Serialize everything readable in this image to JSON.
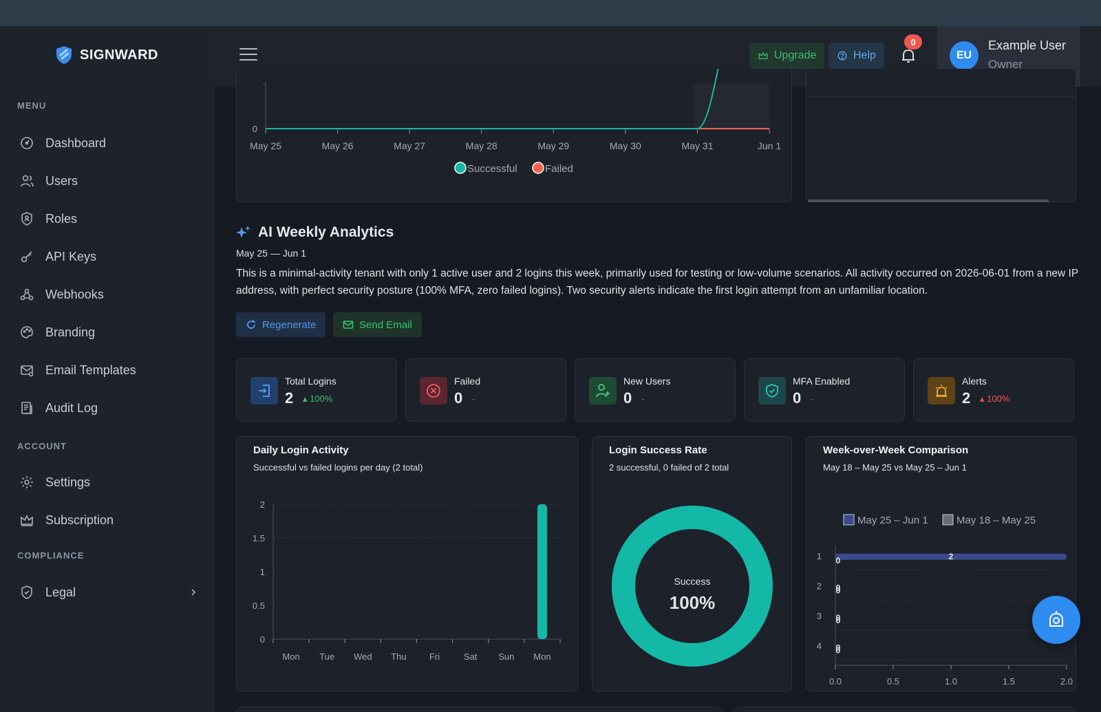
{
  "app": {
    "logo_text": "SIGNWARD"
  },
  "sidebar": {
    "sections": {
      "menu": "MENU",
      "account": "ACCOUNT",
      "compliance": "COMPLIANCE"
    },
    "menu_items": [
      "Dashboard",
      "Users",
      "Roles",
      "API Keys",
      "Webhooks",
      "Branding",
      "Email Templates",
      "Audit Log"
    ],
    "account_items": [
      "Settings",
      "Subscription"
    ],
    "compliance_items": [
      "Legal"
    ]
  },
  "header": {
    "upgrade_label": "Upgrade",
    "help_label": "Help",
    "notification_count": "0",
    "user": {
      "initials": "EU",
      "name": "Example User",
      "role": "Owner"
    }
  },
  "top_chart": {
    "x_labels": [
      "May 25",
      "May 26",
      "May 27",
      "May 28",
      "May 29",
      "May 30",
      "May 31",
      "Jun 1"
    ],
    "y_zero_label": "0",
    "legend": [
      {
        "name": "Successful",
        "color": "#14b8a6"
      },
      {
        "name": "Failed",
        "color": "#f06449"
      }
    ]
  },
  "ai": {
    "title": "AI Weekly Analytics",
    "range": "May 25 — Jun 1",
    "summary": "This is a minimal-activity tenant with only 1 active user and 2 logins this week, primarily used for testing or low-volume scenarios. All activity occurred on 2026-06-01 from a new IP address, with perfect security posture (100% MFA, zero failed logins). Two security alerts indicate the first login attempt from an unfamiliar location.",
    "regenerate_label": "Regenerate",
    "send_email_label": "Send Email"
  },
  "stats": [
    {
      "label": "Total Logins",
      "value": "2",
      "delta": "100%",
      "delta_color": "#35c46e",
      "trend": "up"
    },
    {
      "label": "Failed",
      "value": "0",
      "delta": "-",
      "delta_color": "#5b6ea8",
      "trend": "none"
    },
    {
      "label": "New Users",
      "value": "0",
      "delta": "-",
      "delta_color": "#5b6ea8",
      "trend": "none"
    },
    {
      "label": "MFA Enabled",
      "value": "0",
      "delta": "-",
      "delta_color": "#5b6ea8",
      "trend": "none"
    },
    {
      "label": "Alerts",
      "value": "2",
      "delta": "100%",
      "delta_color": "#f0574f",
      "trend": "up"
    }
  ],
  "daily": {
    "title": "Daily Login Activity",
    "subtitle": "Successful vs failed logins per day (2 total)"
  },
  "success_rate": {
    "title": "Login Success Rate",
    "subtitle": "2 successful, 0 failed of 2 total",
    "center_label": "Success",
    "center_value": "100%"
  },
  "wow": {
    "title": "Week-over-Week Comparison",
    "subtitle": "May 18 – May 25 vs May 25 – Jun 1",
    "legend": [
      "May 25 – Jun 1",
      "May 18 – May 25"
    ]
  },
  "chart_data": [
    {
      "type": "line",
      "x": [
        "May 25",
        "May 26",
        "May 27",
        "May 28",
        "May 29",
        "May 30",
        "May 31",
        "Jun 1"
      ],
      "series": [
        {
          "name": "Successful",
          "values": [
            0,
            0,
            0,
            0,
            0,
            0,
            0,
            2
          ]
        },
        {
          "name": "Failed",
          "values": [
            0,
            0,
            0,
            0,
            0,
            0,
            0,
            0
          ]
        }
      ]
    },
    {
      "type": "bar",
      "title": "Daily Login Activity",
      "categories": [
        "Mon",
        "Tue",
        "Wed",
        "Thu",
        "Fri",
        "Sat",
        "Sun",
        "Mon"
      ],
      "y_ticks": [
        "0",
        "0.5",
        "1",
        "1.5",
        "2"
      ],
      "ylim": [
        0,
        2
      ],
      "series": [
        {
          "name": "Successful",
          "values": [
            0,
            0,
            0,
            0,
            0,
            0,
            0,
            2
          ]
        },
        {
          "name": "Failed",
          "values": [
            0,
            0,
            0,
            0,
            0,
            0,
            0,
            0
          ]
        }
      ]
    },
    {
      "type": "pie",
      "title": "Login Success Rate",
      "slices": [
        {
          "name": "Success",
          "value": 100
        }
      ]
    },
    {
      "type": "bar",
      "orientation": "horizontal",
      "title": "Week-over-Week Comparison",
      "categories": [
        "1",
        "2",
        "3",
        "4"
      ],
      "x_ticks": [
        "0.0",
        "0.5",
        "1.0",
        "1.5",
        "2.0"
      ],
      "xlim": [
        0,
        2
      ],
      "series": [
        {
          "name": "May 25 – Jun 1",
          "values": [
            2,
            0,
            0,
            0
          ]
        },
        {
          "name": "May 18 – May 25",
          "values": [
            0,
            0,
            0,
            0
          ]
        }
      ],
      "data_labels": [
        "2",
        "0",
        "0",
        "0"
      ]
    }
  ]
}
